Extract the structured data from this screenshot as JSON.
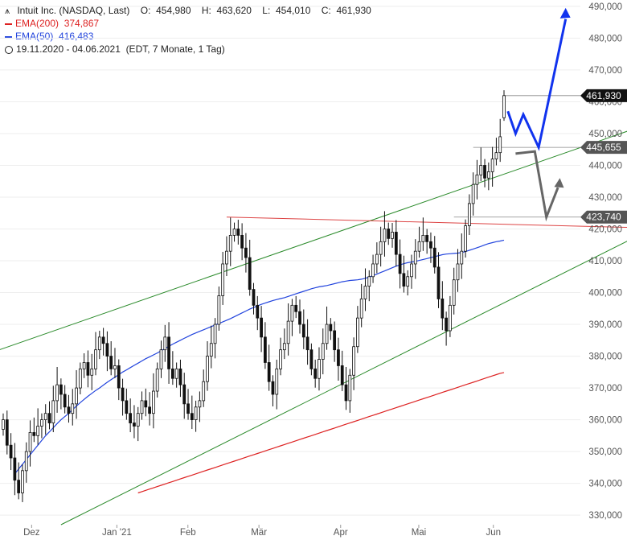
{
  "legend": {
    "title": "Intuit Inc. (NASDAQ, Last)",
    "ohlc": {
      "open_label": "O:",
      "open": "454,980",
      "high_label": "H:",
      "high": "463,620",
      "low_label": "L:",
      "low": "454,010",
      "close_label": "C:",
      "close": "461,930"
    },
    "ema200": {
      "label": "EMA(200)",
      "value": "374,867",
      "color": "#dd2222"
    },
    "ema50": {
      "label": "EMA(50)",
      "value": "416,483",
      "color": "#2244dd"
    },
    "range": {
      "text": "19.11.2020 - 04.06.2021",
      "detail": "(EDT, 7 Monate, 1 Tag)"
    }
  },
  "colors": {
    "candle": "#111111",
    "trend": "#2a8a2a",
    "resistance": "#dd4444",
    "forecast_up": "#1133ee",
    "forecast_alt": "#666666"
  },
  "chart_data": {
    "type": "candlestick",
    "ylim": [
      327000,
      492000
    ],
    "y_ticks": [
      330000,
      340000,
      350000,
      360000,
      370000,
      380000,
      390000,
      400000,
      410000,
      420000,
      430000,
      440000,
      450000,
      460000,
      470000,
      480000,
      490000
    ],
    "y_tick_labels": [
      "330,000",
      "340,000",
      "350,000",
      "360,000",
      "370,000",
      "380,000",
      "390,000",
      "400,000",
      "410,000",
      "420,000",
      "430,000",
      "440,000",
      "450,000",
      "460,000",
      "470,000",
      "480,000",
      "490,000"
    ],
    "x_labels": [
      {
        "label": "Dez",
        "date": "2020-12-01"
      },
      {
        "label": "Jan '21",
        "date": "2021-01-04"
      },
      {
        "label": "Feb",
        "date": "2021-02-01"
      },
      {
        "label": "Mär",
        "date": "2021-03-01"
      },
      {
        "label": "Apr",
        "date": "2021-04-01"
      },
      {
        "label": "Mai",
        "date": "2021-05-03"
      },
      {
        "label": "Jun",
        "date": "2021-06-01"
      }
    ],
    "closes": [
      360000,
      352000,
      348000,
      341000,
      337000,
      344000,
      350000,
      356000,
      355000,
      358000,
      360000,
      362000,
      359000,
      366000,
      371000,
      368000,
      364000,
      362000,
      365000,
      370000,
      376000,
      378000,
      374000,
      376000,
      382000,
      386000,
      384000,
      380000,
      376000,
      377000,
      370000,
      366000,
      362000,
      359000,
      358000,
      362000,
      366000,
      364000,
      362000,
      369000,
      376000,
      382000,
      386000,
      376000,
      373000,
      376000,
      371000,
      365000,
      362000,
      360000,
      364000,
      366000,
      372000,
      380000,
      384000,
      390000,
      399000,
      409000,
      413000,
      418000,
      420000,
      418000,
      414000,
      411000,
      401000,
      396000,
      392000,
      386000,
      378000,
      372000,
      368000,
      376000,
      382000,
      384000,
      391000,
      396000,
      394000,
      390000,
      386000,
      382000,
      376000,
      373000,
      379000,
      384000,
      390000,
      388000,
      382000,
      377000,
      371000,
      366000,
      374000,
      383000,
      392000,
      398000,
      402000,
      405000,
      409000,
      412000,
      416000,
      420000,
      417000,
      419000,
      412000,
      406000,
      402000,
      405000,
      409000,
      413000,
      416000,
      418000,
      416000,
      414000,
      408000,
      398000,
      392000,
      388000,
      396000,
      404000,
      409000,
      413000,
      421000,
      428000,
      434000,
      437000,
      440000,
      436000,
      438000,
      442000,
      444000,
      449000,
      461930
    ],
    "start_date": "2020-11-19",
    "ema50": [
      343000,
      344500,
      346000,
      347500,
      349000,
      350500,
      352000,
      353500,
      355000,
      356200,
      357500,
      358800,
      360000,
      361000,
      362000,
      363200,
      364300,
      365400,
      366400,
      367400,
      368300,
      369200,
      370000,
      370900,
      371800,
      372600,
      373400,
      374200,
      375000,
      375700,
      376400,
      377100,
      377800,
      378500,
      379200,
      379800,
      380400,
      381000,
      381700,
      382400,
      383100,
      383800,
      384400,
      385000,
      385600,
      386200,
      386800,
      387300,
      387800,
      388300,
      388800,
      389300,
      389800,
      390300,
      390800,
      391300,
      391800,
      392400,
      393000,
      393600,
      394200,
      394800,
      395300,
      395800,
      396300,
      396700,
      397100,
      397500,
      397800,
      398100,
      398400,
      398800,
      399200,
      399600,
      400000,
      400400,
      400800,
      401200,
      401500,
      401800,
      402000,
      402200,
      402500,
      402800,
      403100,
      403400,
      403600,
      403800,
      403900,
      404000,
      404200,
      404500,
      404900,
      405300,
      405800,
      406300,
      406800,
      407300,
      407800,
      408300,
      408700,
      409100,
      409400,
      409600,
      409800,
      410100,
      410400,
      410700,
      411000,
      411300,
      411600,
      411900,
      412100,
      412200,
      412300,
      412400,
      412600,
      412900,
      413300,
      413700,
      414100,
      414500,
      415000,
      415400,
      415700,
      416000,
      416200,
      416483
    ],
    "ema200": [
      337000,
      337400,
      337800,
      338200,
      338600,
      339000,
      339400,
      339800,
      340200,
      340600,
      341000,
      341400,
      341800,
      342200,
      342600,
      343000,
      343400,
      343800,
      344200,
      344600,
      345000,
      345400,
      345800,
      346200,
      346600,
      347000,
      347400,
      347800,
      348200,
      348600,
      349000,
      349400,
      349800,
      350200,
      350600,
      351000,
      351400,
      351800,
      352200,
      352600,
      353000,
      353400,
      353800,
      354200,
      354600,
      355000,
      355400,
      355800,
      356200,
      356600,
      357000,
      357400,
      357800,
      358200,
      358600,
      359000,
      359400,
      359800,
      360200,
      360600,
      361000,
      361400,
      361800,
      362200,
      362600,
      363000,
      363400,
      363800,
      364200,
      364600,
      365000,
      365400,
      365800,
      366200,
      366600,
      367000,
      367400,
      367800,
      368200,
      368600,
      369000,
      369400,
      369800,
      370200,
      370600,
      371000,
      371400,
      371800,
      372200,
      372600,
      373000,
      373400,
      373800,
      374200,
      374600,
      374867
    ],
    "horizontal_levels": [
      {
        "value": 461930,
        "label": "461,930",
        "color": "#111111"
      },
      {
        "value": 445655,
        "label": "445,655",
        "color": "#555555"
      },
      {
        "value": 423740,
        "label": "423,740",
        "color": "#555555"
      }
    ]
  }
}
